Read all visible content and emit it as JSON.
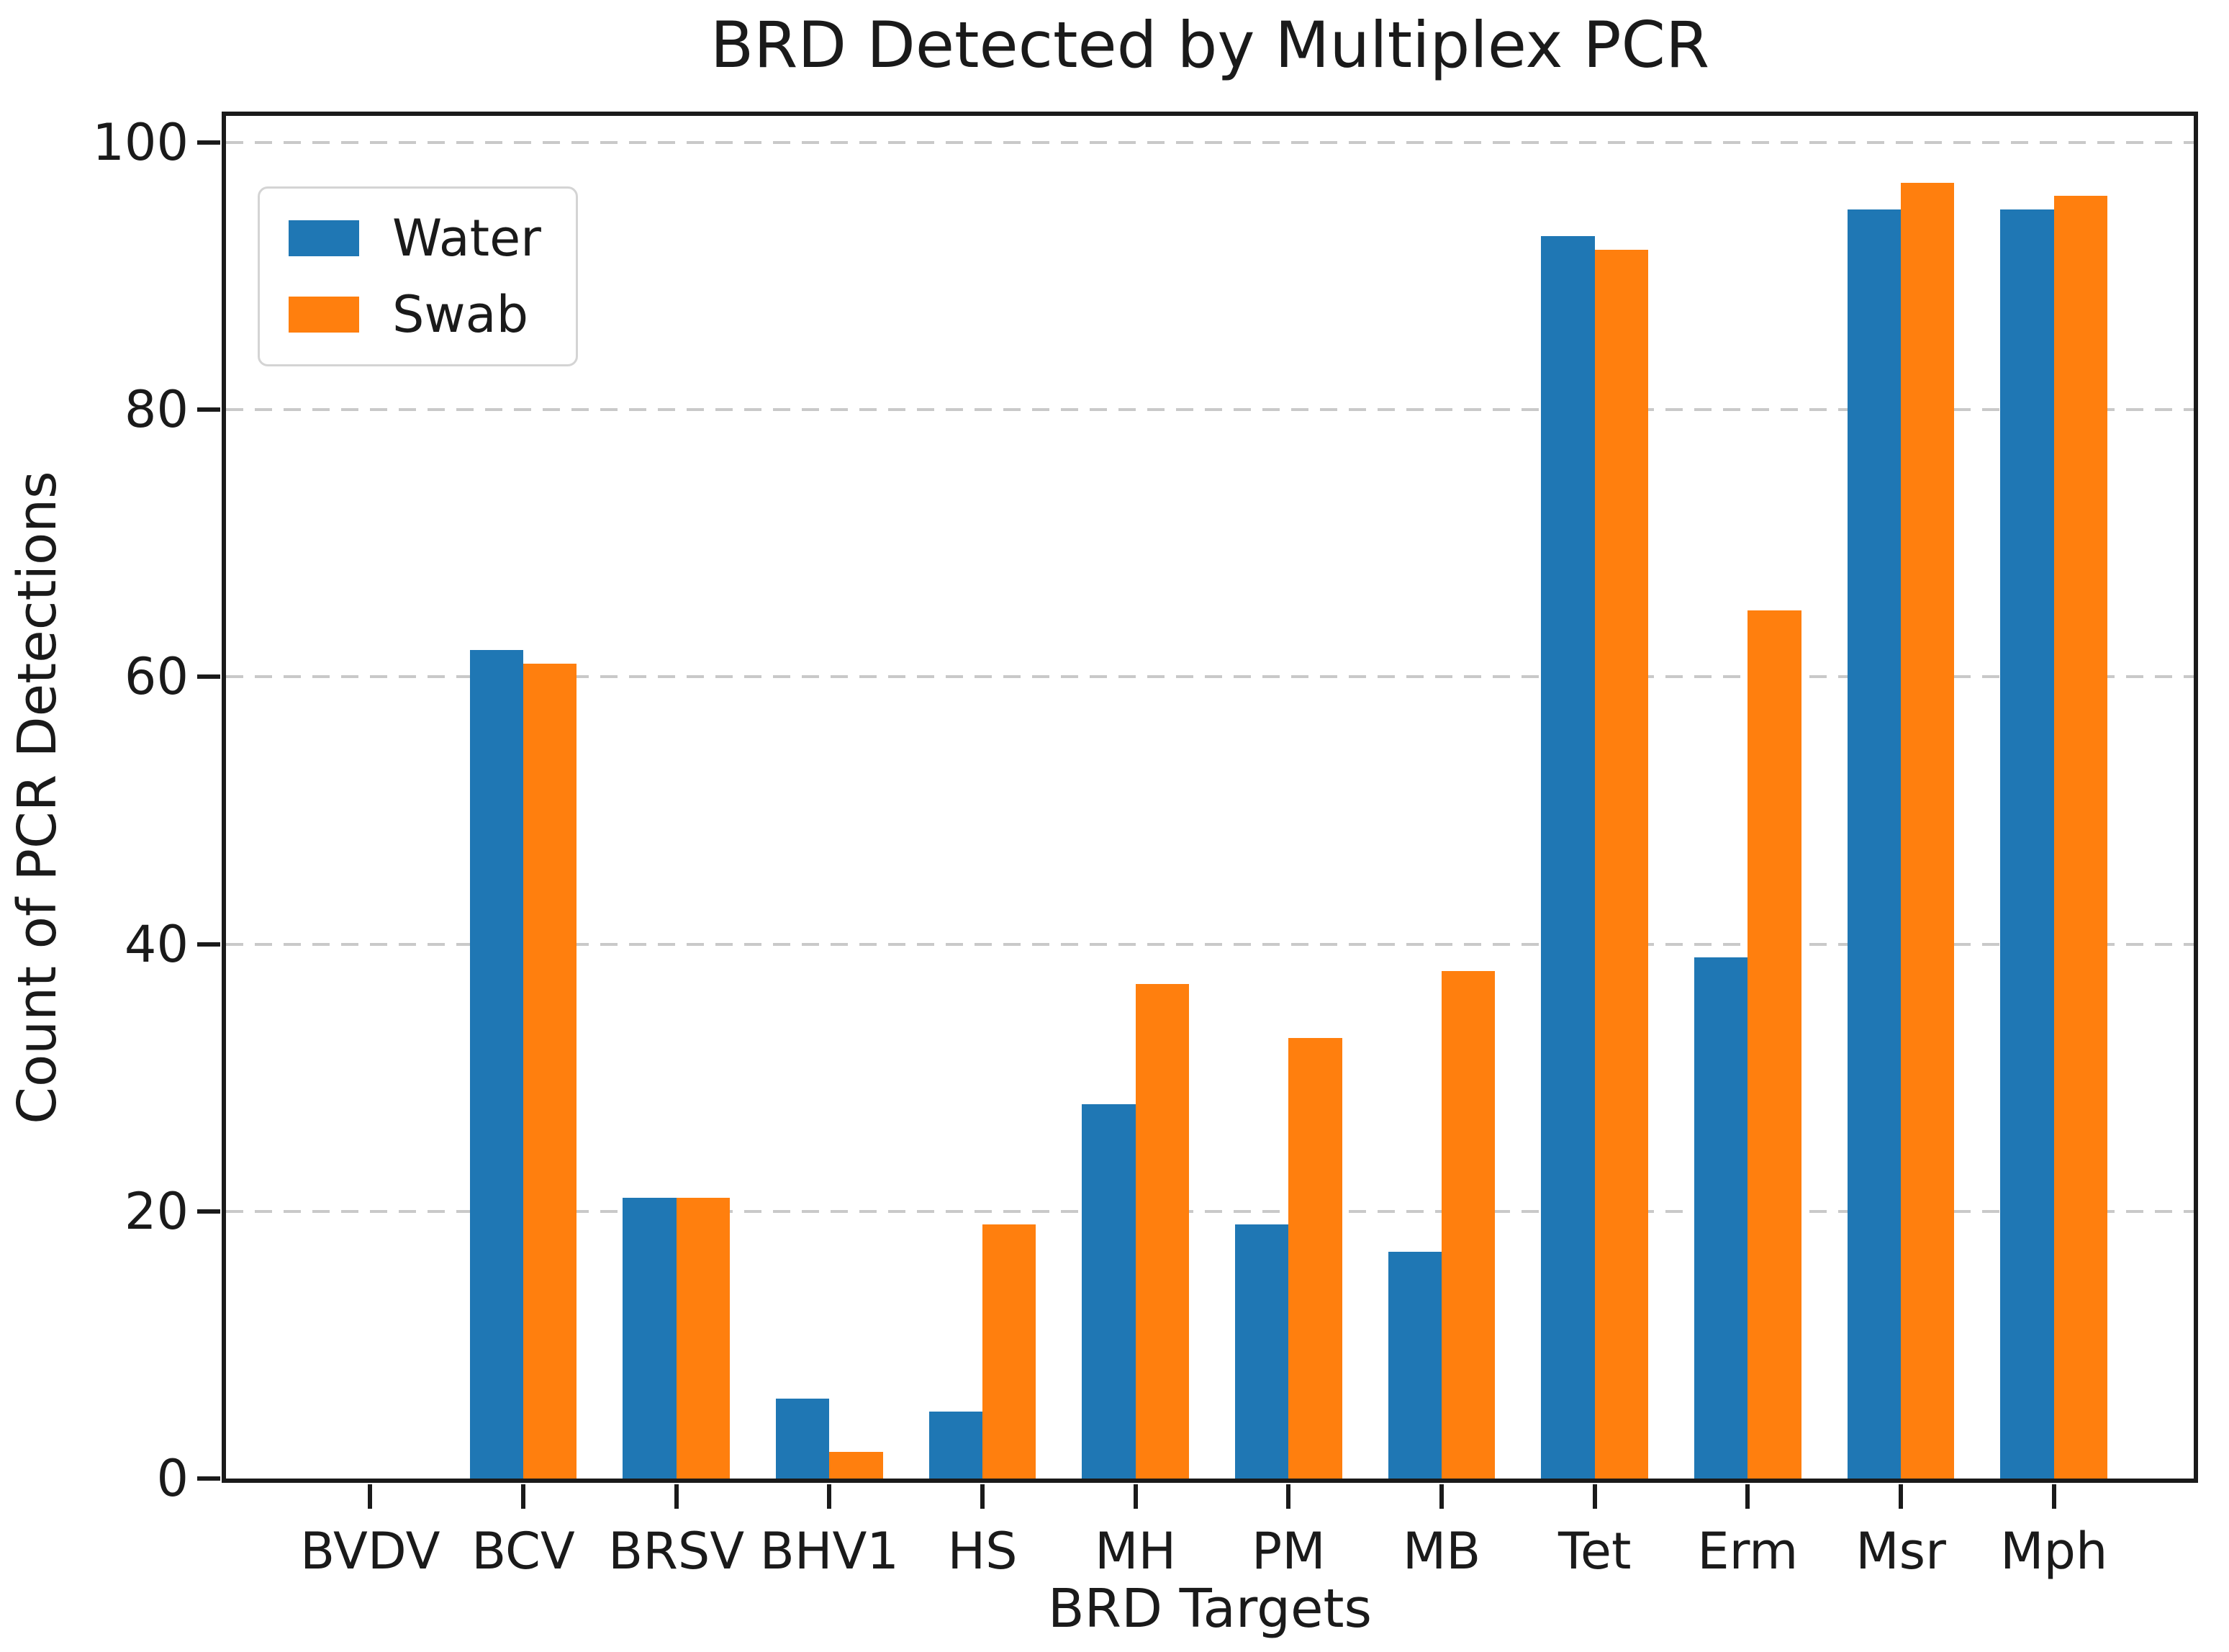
{
  "figure": {
    "title": "BRD Detected by Multiplex PCR",
    "xlabel": "BRD Targets",
    "ylabel": "Count of PCR Detections"
  },
  "legend": {
    "items": [
      {
        "label": "Water",
        "color": "#1f77b4"
      },
      {
        "label": "Swab",
        "color": "#ff7f0e"
      }
    ]
  },
  "colors": {
    "water": "#1f77b4",
    "swab": "#ff7f0e",
    "grid": "#c9c9c9",
    "axis": "#1a1a1a"
  },
  "chart_data": {
    "type": "bar",
    "title": "BRD Detected by Multiplex PCR",
    "xlabel": "BRD Targets",
    "ylabel": "Count of PCR Detections",
    "categories": [
      "BVDV",
      "BCV",
      "BRSV",
      "BHV1",
      "HS",
      "MH",
      "PM",
      "MB",
      "Tet",
      "Erm",
      "Msr",
      "Mph"
    ],
    "series": [
      {
        "name": "Water",
        "color": "#1f77b4",
        "values": [
          0,
          62,
          21,
          6,
          5,
          28,
          19,
          17,
          93,
          39,
          95,
          95
        ]
      },
      {
        "name": "Swab",
        "color": "#ff7f0e",
        "values": [
          0,
          61,
          21,
          2,
          19,
          37,
          33,
          38,
          92,
          65,
          97,
          96
        ]
      }
    ],
    "ylim": [
      0,
      100
    ],
    "yticks": [
      0,
      20,
      40,
      60,
      80,
      100
    ],
    "grid": "horizontal-dashed",
    "legend_position": "upper-left"
  }
}
